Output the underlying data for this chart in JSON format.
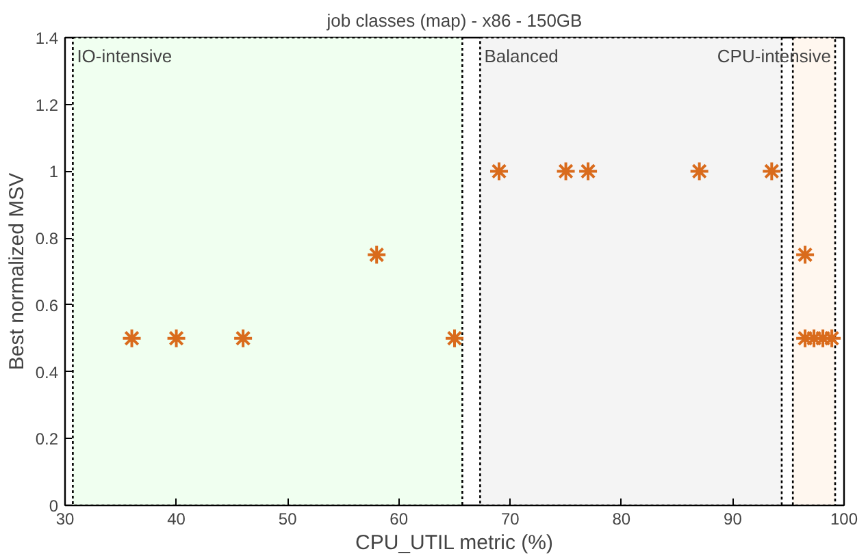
{
  "chart_data": {
    "type": "scatter",
    "title": "job classes (map) - x86 - 150GB",
    "xlabel": "CPU_UTIL metric (%)",
    "ylabel": "Best normalized MSV",
    "x": [
      36,
      40,
      46,
      58,
      65,
      69,
      75,
      77,
      87,
      93.5,
      96.5,
      96.5,
      97.3,
      98.1,
      98.9
    ],
    "series": [
      {
        "color": "#d96b1c",
        "values": [
          0.5,
          0.5,
          0.5,
          0.75,
          0.5,
          1,
          1,
          1,
          1,
          1,
          0.75,
          0.5,
          0.5,
          0.5,
          0.5
        ]
      }
    ],
    "marker": "cross",
    "grid": false,
    "xlim": [
      30,
      100
    ],
    "xticks": [
      30,
      40,
      50,
      60,
      70,
      80,
      90,
      100
    ],
    "ylim": [
      0,
      1.4
    ],
    "yticks": [
      0,
      {
        "value": 0.2,
        "label": "0.2"
      },
      {
        "value": 0.4,
        "label": "0.4"
      },
      {
        "value": 0.6,
        "label": "0.6"
      },
      {
        "value": 0.8,
        "label": "0.8"
      },
      1,
      {
        "value": 1.2,
        "label": "1.2"
      },
      {
        "value": 1.4,
        "label": "1.4"
      }
    ],
    "bands": [
      {
        "axis": "x",
        "from": 30.7,
        "to": 65.7,
        "label": "IO-intensive",
        "color": "#f0fff0"
      },
      {
        "axis": "x",
        "from": 67.3,
        "to": 94.4,
        "label": "Balanced",
        "color": "#f4f4f4"
      },
      {
        "axis": "x",
        "from": 95.4,
        "to": 99.2,
        "label": "CPU-intensive",
        "color": "#fff7ef"
      }
    ]
  }
}
